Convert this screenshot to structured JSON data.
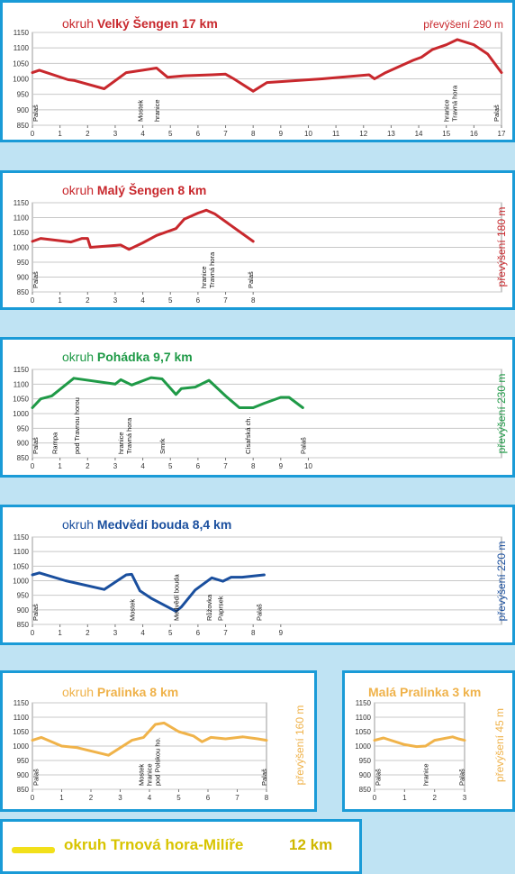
{
  "chart_data": [
    {
      "type": "line",
      "title_prefix": "okruh",
      "title_name": "Velký Šengen",
      "title_km": "17 km",
      "elevation": "převýšení 290 m",
      "color": "#c8282d",
      "yticks": [
        850,
        900,
        950,
        1000,
        1050,
        1100,
        1150
      ],
      "ylim": [
        850,
        1150
      ],
      "xlim": [
        0,
        17
      ],
      "xticks": [
        0,
        1,
        2,
        3,
        4,
        5,
        6,
        7,
        8,
        9,
        10,
        11,
        12,
        13,
        14,
        15,
        16,
        17
      ],
      "x": [
        0,
        0.25,
        1.3,
        1.5,
        2.6,
        3.4,
        4.0,
        4.5,
        4.9,
        5.5,
        6.5,
        7.0,
        7.3,
        8.0,
        8.5,
        10.5,
        12.2,
        12.4,
        12.8,
        13.8,
        14.1,
        14.5,
        15.0,
        15.4,
        16.0,
        16.5,
        17.0
      ],
      "y": [
        1020,
        1028,
        997,
        995,
        968,
        1020,
        1028,
        1035,
        1005,
        1010,
        1013,
        1015,
        1000,
        960,
        988,
        1000,
        1013,
        1000,
        1020,
        1060,
        1070,
        1095,
        1110,
        1127,
        1110,
        1080,
        1020
      ],
      "places": [
        {
          "x": 0.1,
          "names": [
            "Palaš"
          ]
        },
        {
          "x": 3.9,
          "names": [
            "Mostek"
          ]
        },
        {
          "x": 4.5,
          "names": [
            "hranice"
          ]
        },
        {
          "x": 15.0,
          "names": [
            "hranice",
            "Travná hora"
          ]
        },
        {
          "x": 16.8,
          "names": [
            "Palaš"
          ]
        }
      ]
    },
    {
      "type": "line",
      "title_prefix": "okruh",
      "title_name": "Malý Šengen",
      "title_km": "8 km",
      "elevation": "převýšení 180 m",
      "color": "#c8282d",
      "yticks": [
        850,
        900,
        950,
        1000,
        1050,
        1100,
        1150
      ],
      "ylim": [
        850,
        1150
      ],
      "xlim": [
        0,
        17
      ],
      "xticks": [
        0,
        1,
        2,
        3,
        4,
        5,
        6,
        7,
        8
      ],
      "x": [
        0,
        0.3,
        1.4,
        1.8,
        2.0,
        2.1,
        3.2,
        3.5,
        4.0,
        4.5,
        5.2,
        5.5,
        6.0,
        6.3,
        6.6,
        8.0
      ],
      "y": [
        1020,
        1030,
        1018,
        1030,
        1030,
        1000,
        1008,
        993,
        1015,
        1040,
        1063,
        1095,
        1115,
        1125,
        1113,
        1020
      ],
      "places": [
        {
          "x": 0.1,
          "names": [
            "Palaš"
          ]
        },
        {
          "x": 6.2,
          "names": [
            "hranice",
            "Travná hora"
          ]
        },
        {
          "x": 7.9,
          "names": [
            "Palaš"
          ]
        }
      ]
    },
    {
      "type": "line",
      "title_prefix": "okruh",
      "title_name": "Pohádka",
      "title_km": "9,7 km",
      "elevation": "převýšení 230 m",
      "color": "#1f9a47",
      "yticks": [
        850,
        900,
        950,
        1000,
        1050,
        1100,
        1150
      ],
      "ylim": [
        850,
        1150
      ],
      "xlim": [
        0,
        17
      ],
      "xticks": [
        0,
        1,
        2,
        3,
        4,
        5,
        6,
        7,
        8,
        9,
        10
      ],
      "x": [
        0,
        0.3,
        0.7,
        1.5,
        3.0,
        3.2,
        3.6,
        4.3,
        4.7,
        5.2,
        5.4,
        5.9,
        6.4,
        7.0,
        7.5,
        8.0,
        8.4,
        9.0,
        9.3,
        9.8
      ],
      "y": [
        1020,
        1050,
        1060,
        1120,
        1100,
        1115,
        1097,
        1122,
        1118,
        1065,
        1085,
        1090,
        1113,
        1060,
        1020,
        1020,
        1035,
        1055,
        1055,
        1020
      ],
      "places": [
        {
          "x": 0.1,
          "names": [
            "Palaš"
          ]
        },
        {
          "x": 0.8,
          "names": [
            "Rampa"
          ]
        },
        {
          "x": 1.6,
          "names": [
            "pod Travnou horou"
          ]
        },
        {
          "x": 3.2,
          "names": [
            "hranice",
            "Travná hora"
          ]
        },
        {
          "x": 4.7,
          "names": [
            "Smrk"
          ]
        },
        {
          "x": 7.8,
          "names": [
            "Císařská ch."
          ]
        },
        {
          "x": 9.8,
          "names": [
            "Palaš"
          ]
        }
      ]
    },
    {
      "type": "line",
      "title_prefix": "okruh",
      "title_name": "Medvědí bouda",
      "title_km": "8,4 km",
      "elevation": "převýšení 220 m",
      "color": "#1a4f9e",
      "yticks": [
        850,
        900,
        950,
        1000,
        1050,
        1100,
        1150
      ],
      "ylim": [
        850,
        1150
      ],
      "xlim": [
        0,
        17
      ],
      "xticks": [
        0,
        1,
        2,
        3,
        4,
        5,
        6,
        7,
        8,
        9
      ],
      "x": [
        0,
        0.25,
        1.2,
        2.6,
        3.4,
        3.6,
        3.9,
        4.3,
        5.0,
        5.2,
        5.4,
        5.9,
        6.5,
        6.9,
        7.2,
        7.6,
        8.4
      ],
      "y": [
        1020,
        1027,
        1000,
        970,
        1020,
        1022,
        965,
        940,
        905,
        895,
        910,
        968,
        1010,
        998,
        1012,
        1012,
        1020
      ],
      "places": [
        {
          "x": 0.1,
          "names": [
            "Palaš"
          ]
        },
        {
          "x": 3.6,
          "names": [
            "Mostek"
          ]
        },
        {
          "x": 5.2,
          "names": [
            "Medvědí bouda"
          ]
        },
        {
          "x": 6.4,
          "names": [
            "Růžovka"
          ]
        },
        {
          "x": 6.8,
          "names": [
            "Paprsek"
          ]
        },
        {
          "x": 8.2,
          "names": [
            "Palaš"
          ]
        }
      ]
    },
    {
      "type": "line",
      "title_prefix": "okruh",
      "title_name": "Pralinka",
      "title_km": "8 km",
      "elevation": "převýšení 160 m",
      "color": "#f0b34a",
      "yticks": [
        850,
        900,
        950,
        1000,
        1050,
        1100,
        1150
      ],
      "ylim": [
        850,
        1150
      ],
      "xlim": [
        0,
        8
      ],
      "xticks": [
        0,
        1,
        2,
        3,
        4,
        5,
        6,
        7,
        8
      ],
      "x": [
        0,
        0.3,
        1.0,
        1.5,
        2.6,
        3.4,
        3.8,
        4.2,
        4.5,
        5.0,
        5.5,
        5.8,
        6.1,
        6.6,
        7.2,
        7.7,
        8.0
      ],
      "y": [
        1020,
        1030,
        1000,
        995,
        968,
        1020,
        1030,
        1075,
        1080,
        1050,
        1035,
        1015,
        1030,
        1025,
        1032,
        1025,
        1020
      ],
      "places": [
        {
          "x": 0.1,
          "names": [
            "Palaš"
          ]
        },
        {
          "x": 3.7,
          "names": [
            "Mostek",
            "hranice",
            "pod Polskou ho."
          ]
        },
        {
          "x": 7.9,
          "names": [
            "Palaš"
          ]
        }
      ]
    },
    {
      "type": "line",
      "title_prefix": "",
      "title_name": "Malá Pralinka",
      "title_km": "3 km",
      "elevation": "převýšení 45 m",
      "color": "#f0b34a",
      "yticks": [
        850,
        900,
        950,
        1000,
        1050,
        1100,
        1150
      ],
      "ylim": [
        850,
        1150
      ],
      "xlim": [
        0,
        3
      ],
      "xticks": [
        0,
        1,
        2,
        3
      ],
      "x": [
        0,
        0.3,
        1.0,
        1.4,
        1.7,
        2.0,
        2.6,
        2.8,
        3.0
      ],
      "y": [
        1020,
        1028,
        1005,
        998,
        1000,
        1020,
        1032,
        1025,
        1020
      ],
      "places": [
        {
          "x": 0.1,
          "names": [
            "Palaš"
          ]
        },
        {
          "x": 1.7,
          "names": [
            "hranice"
          ]
        },
        {
          "x": 2.9,
          "names": [
            "Palaš"
          ]
        }
      ]
    }
  ],
  "legend": {
    "title": "okruh Trnová hora-Milíře",
    "km": "12 km",
    "color": "#f2e01a"
  }
}
